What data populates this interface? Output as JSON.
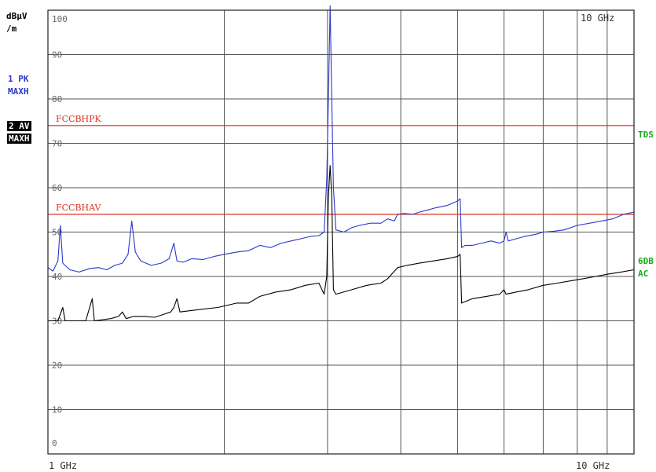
{
  "unit": {
    "line1": "dBµV",
    "line2": "/m"
  },
  "traces": [
    {
      "id": "1",
      "line1": "1 PK",
      "line2": "MAXH",
      "color": "#2a38c8"
    },
    {
      "id": "2",
      "line1": "2 AV",
      "line2": "MAXH",
      "color": "#000000"
    }
  ],
  "right_labels": {
    "tds": "TDS",
    "sixdb": "6DB",
    "ac": "AC"
  },
  "corner_freq_label": "10 GHz",
  "chart_data": {
    "type": "line",
    "xscale": "log",
    "xlim": [
      1,
      10
    ],
    "xunit": "GHz",
    "ylim": [
      0,
      100
    ],
    "yticks": [
      0,
      10,
      20,
      30,
      40,
      50,
      60,
      70,
      80,
      90,
      100
    ],
    "xtick_labels": [
      "1 GHz",
      "10 GHz"
    ],
    "grid": true,
    "limit_lines": [
      {
        "name": "FCCBHPK",
        "value": 74,
        "color": "#e03020"
      },
      {
        "name": "FCCBHAV",
        "value": 54,
        "color": "#e03020"
      }
    ],
    "series": [
      {
        "name": "1 PK MAXH",
        "color": "#2a38c8",
        "points": [
          [
            1.0,
            42.0
          ],
          [
            1.02,
            41.2
          ],
          [
            1.04,
            43.5
          ],
          [
            1.05,
            51.5
          ],
          [
            1.06,
            43.0
          ],
          [
            1.09,
            41.5
          ],
          [
            1.13,
            41.0
          ],
          [
            1.18,
            41.8
          ],
          [
            1.22,
            42.0
          ],
          [
            1.26,
            41.5
          ],
          [
            1.3,
            42.5
          ],
          [
            1.34,
            43.0
          ],
          [
            1.37,
            45.0
          ],
          [
            1.39,
            52.5
          ],
          [
            1.41,
            45.5
          ],
          [
            1.44,
            43.5
          ],
          [
            1.5,
            42.5
          ],
          [
            1.56,
            43.0
          ],
          [
            1.61,
            44.0
          ],
          [
            1.64,
            47.5
          ],
          [
            1.66,
            43.5
          ],
          [
            1.7,
            43.2
          ],
          [
            1.76,
            44.0
          ],
          [
            1.84,
            43.8
          ],
          [
            1.92,
            44.5
          ],
          [
            2.0,
            45.0
          ],
          [
            2.1,
            45.5
          ],
          [
            2.2,
            45.8
          ],
          [
            2.3,
            47.0
          ],
          [
            2.4,
            46.5
          ],
          [
            2.5,
            47.5
          ],
          [
            2.6,
            48.0
          ],
          [
            2.7,
            48.5
          ],
          [
            2.8,
            49.0
          ],
          [
            2.9,
            49.2
          ],
          [
            2.96,
            50.0
          ],
          [
            2.99,
            62.0
          ],
          [
            3.01,
            80.0
          ],
          [
            3.03,
            101.0
          ],
          [
            3.05,
            80.0
          ],
          [
            3.07,
            60.0
          ],
          [
            3.1,
            50.5
          ],
          [
            3.2,
            50.0
          ],
          [
            3.3,
            51.0
          ],
          [
            3.4,
            51.5
          ],
          [
            3.55,
            52.0
          ],
          [
            3.7,
            52.0
          ],
          [
            3.8,
            53.0
          ],
          [
            3.9,
            52.5
          ],
          [
            3.95,
            54.0
          ],
          [
            4.05,
            54.2
          ],
          [
            4.2,
            54.0
          ],
          [
            4.3,
            54.5
          ],
          [
            4.45,
            55.0
          ],
          [
            4.6,
            55.5
          ],
          [
            4.8,
            56.0
          ],
          [
            5.0,
            57.0
          ],
          [
            5.05,
            57.5
          ],
          [
            5.08,
            46.5
          ],
          [
            5.15,
            47.0
          ],
          [
            5.3,
            47.0
          ],
          [
            5.5,
            47.5
          ],
          [
            5.7,
            48.0
          ],
          [
            5.9,
            47.5
          ],
          [
            6.0,
            48.0
          ],
          [
            6.05,
            50.0
          ],
          [
            6.1,
            48.0
          ],
          [
            6.3,
            48.5
          ],
          [
            6.5,
            49.0
          ],
          [
            6.8,
            49.5
          ],
          [
            7.0,
            50.0
          ],
          [
            7.3,
            50.2
          ],
          [
            7.6,
            50.5
          ],
          [
            8.0,
            51.5
          ],
          [
            8.4,
            52.0
          ],
          [
            8.8,
            52.5
          ],
          [
            9.2,
            53.0
          ],
          [
            9.6,
            54.0
          ],
          [
            10.0,
            54.5
          ]
        ]
      },
      {
        "name": "2 AV MAXH",
        "color": "#000000",
        "points": [
          [
            1.0,
            30.0
          ],
          [
            1.04,
            30.0
          ],
          [
            1.06,
            33.0
          ],
          [
            1.07,
            30.0
          ],
          [
            1.12,
            30.0
          ],
          [
            1.16,
            30.0
          ],
          [
            1.19,
            35.0
          ],
          [
            1.2,
            30.0
          ],
          [
            1.28,
            30.5
          ],
          [
            1.32,
            31.0
          ],
          [
            1.34,
            32.0
          ],
          [
            1.36,
            30.5
          ],
          [
            1.4,
            31.0
          ],
          [
            1.46,
            31.0
          ],
          [
            1.52,
            30.8
          ],
          [
            1.58,
            31.5
          ],
          [
            1.62,
            32.0
          ],
          [
            1.64,
            33.0
          ],
          [
            1.66,
            35.0
          ],
          [
            1.68,
            32.0
          ],
          [
            1.8,
            32.5
          ],
          [
            1.95,
            33.0
          ],
          [
            2.1,
            34.0
          ],
          [
            2.2,
            34.0
          ],
          [
            2.3,
            35.5
          ],
          [
            2.45,
            36.5
          ],
          [
            2.6,
            37.0
          ],
          [
            2.75,
            38.0
          ],
          [
            2.9,
            38.5
          ],
          [
            2.96,
            36.0
          ],
          [
            2.99,
            40.0
          ],
          [
            3.01,
            58.0
          ],
          [
            3.03,
            65.0
          ],
          [
            3.05,
            58.0
          ],
          [
            3.07,
            37.0
          ],
          [
            3.1,
            36.0
          ],
          [
            3.3,
            37.0
          ],
          [
            3.5,
            38.0
          ],
          [
            3.7,
            38.5
          ],
          [
            3.8,
            39.5
          ],
          [
            3.95,
            42.0
          ],
          [
            4.1,
            42.5
          ],
          [
            4.3,
            43.0
          ],
          [
            4.55,
            43.5
          ],
          [
            4.8,
            44.0
          ],
          [
            5.0,
            44.5
          ],
          [
            5.05,
            45.0
          ],
          [
            5.08,
            34.0
          ],
          [
            5.3,
            35.0
          ],
          [
            5.6,
            35.5
          ],
          [
            5.9,
            36.0
          ],
          [
            6.0,
            37.0
          ],
          [
            6.05,
            36.0
          ],
          [
            6.3,
            36.5
          ],
          [
            6.6,
            37.0
          ],
          [
            7.0,
            38.0
          ],
          [
            7.4,
            38.5
          ],
          [
            7.8,
            39.0
          ],
          [
            8.2,
            39.5
          ],
          [
            8.6,
            40.0
          ],
          [
            9.0,
            40.5
          ],
          [
            9.5,
            41.0
          ],
          [
            10.0,
            41.5
          ]
        ]
      }
    ]
  }
}
